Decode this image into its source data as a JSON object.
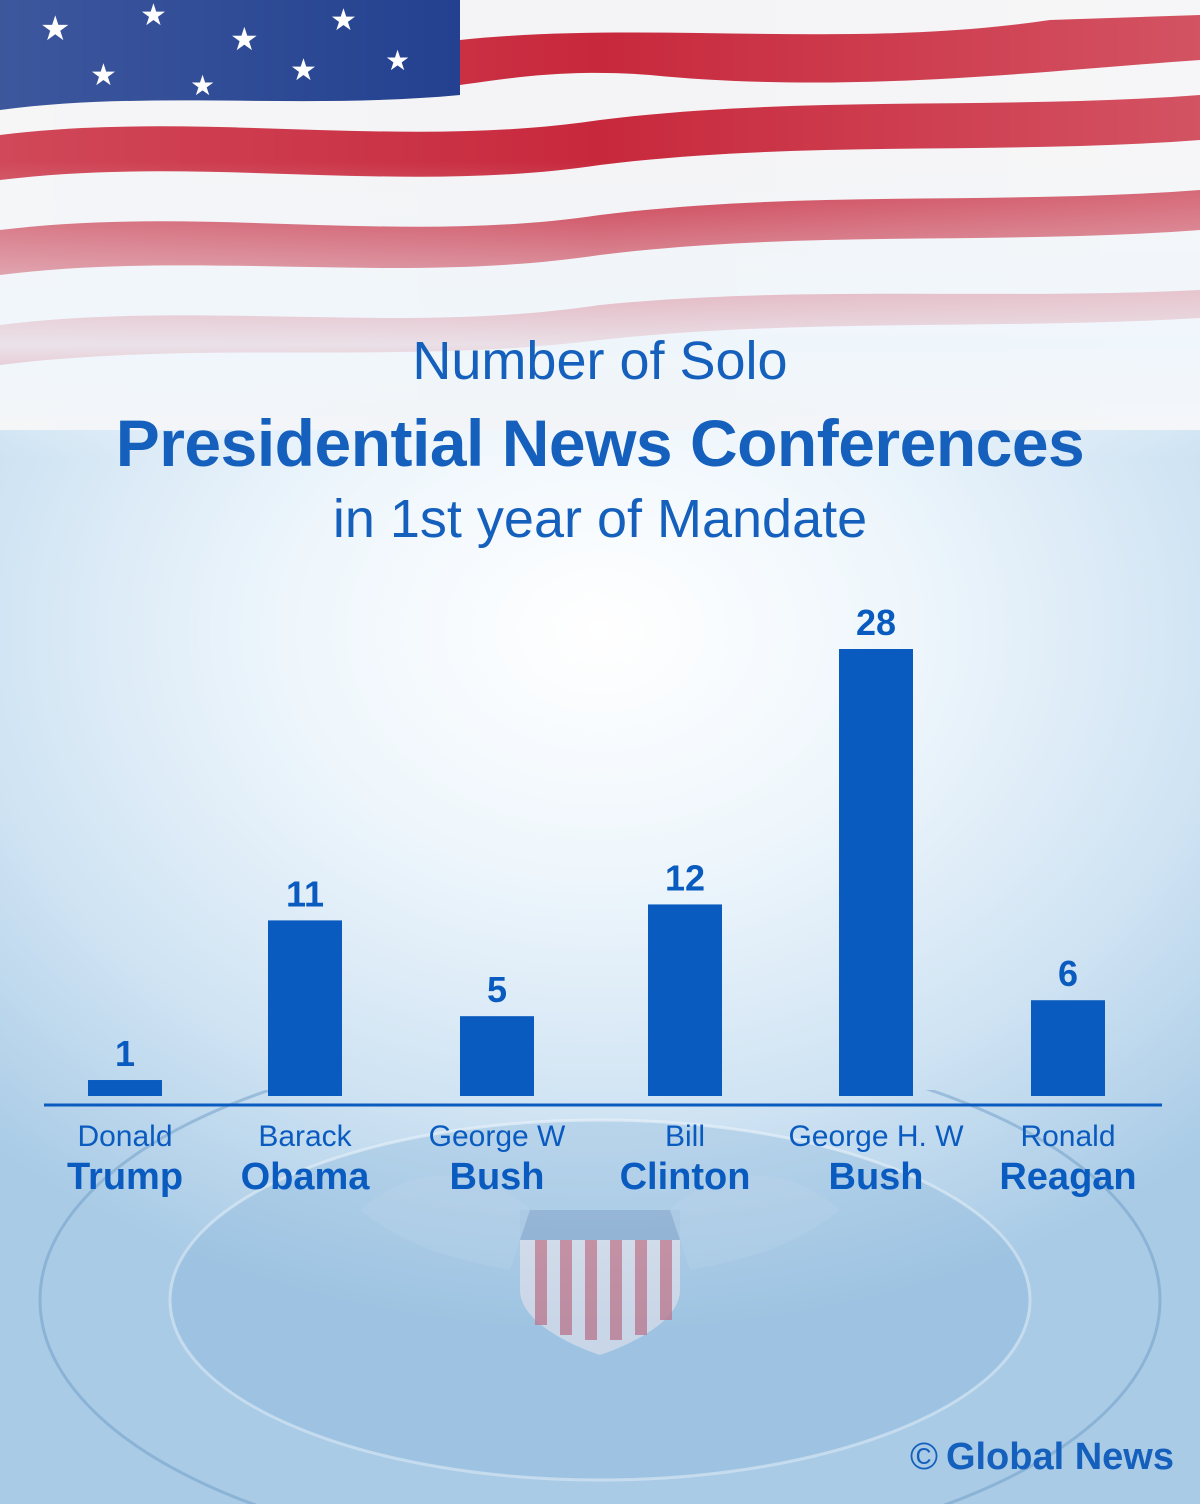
{
  "title": {
    "line1": "Number of Solo",
    "line2": "Presidential News Conferences",
    "line3": "in 1st year of Mandate"
  },
  "chart_data": {
    "type": "bar",
    "categories": [
      {
        "first": "Donald",
        "last": "Trump"
      },
      {
        "first": "Barack",
        "last": "Obama"
      },
      {
        "first": "George W",
        "last": "Bush"
      },
      {
        "first": "Bill",
        "last": "Clinton"
      },
      {
        "first": "George H. W",
        "last": "Bush"
      },
      {
        "first": "Ronald",
        "last": "Reagan"
      }
    ],
    "values": [
      1,
      11,
      5,
      12,
      28,
      6
    ],
    "value_labels": [
      "1",
      "11",
      "5",
      "12",
      "28",
      "6"
    ],
    "ylim": [
      0,
      28
    ],
    "grid": false,
    "bar_color": "#0a5bbf"
  },
  "credit": {
    "symbol": "©",
    "text": "Global News"
  },
  "colors": {
    "accent": "#1560bd",
    "flag_red": "#c8283c",
    "flag_blue": "#1b3a8c"
  }
}
